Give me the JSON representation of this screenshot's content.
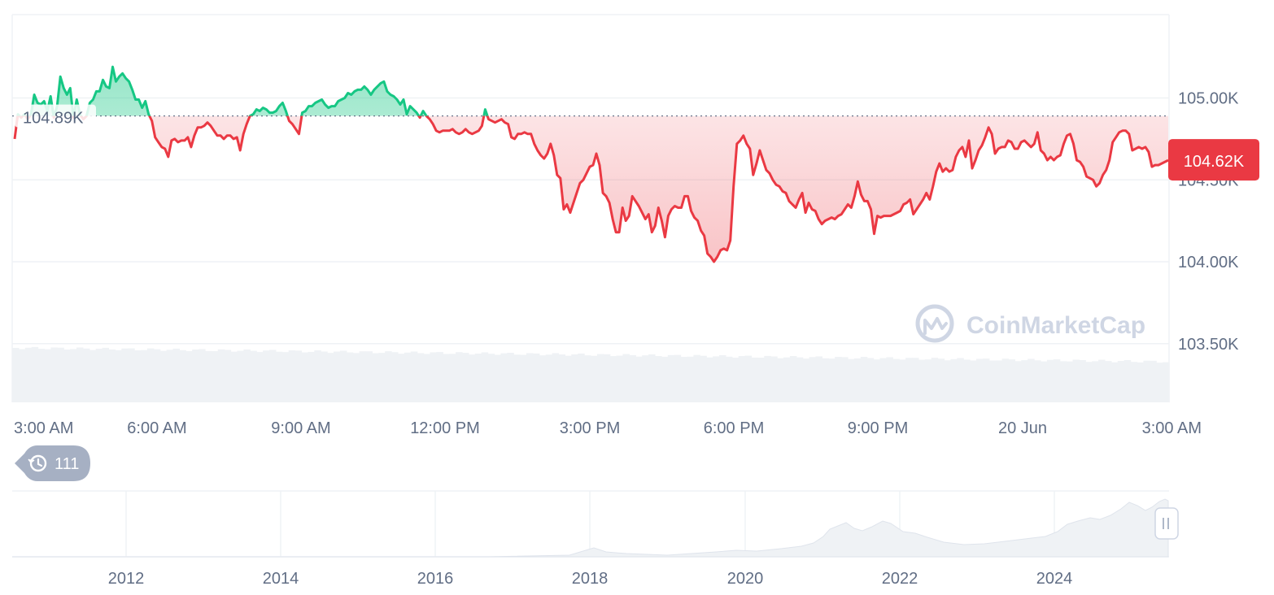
{
  "chart_data": [
    {
      "type": "line",
      "title": "",
      "xlabel": "",
      "ylabel": "",
      "x_ticks": [
        "3:00 AM",
        "6:00 AM",
        "9:00 AM",
        "12:00 PM",
        "3:00 PM",
        "6:00 PM",
        "9:00 PM",
        "20 Jun",
        "3:00 AM"
      ],
      "y_ticks": [
        "105.00K",
        "104.50K",
        "104.00K",
        "103.50K"
      ],
      "y_tick_values": [
        105000,
        104500,
        104000,
        103500
      ],
      "ylim": [
        103500,
        105500
      ],
      "grid": true,
      "reference_value": 104890,
      "reference_label": "104.89K",
      "current_value": 104620,
      "current_label": "104.62K",
      "color_above": "#16c784",
      "color_below": "#ea3943",
      "volume_color": "#eff2f5",
      "watermark": "CoinMarketCap",
      "series": [
        {
          "values": [
            104750,
            104900,
            104880,
            104900,
            104870,
            104900,
            105020,
            104970,
            104960,
            104980,
            104920,
            105010,
            104880,
            104950,
            105130,
            105060,
            105020,
            105060,
            104880,
            104990,
            104900,
            104870,
            104890,
            104970,
            104990,
            105040,
            105040,
            105110,
            105070,
            105060,
            105190,
            105100,
            105130,
            105150,
            105120,
            105100,
            105050,
            104990,
            104990,
            104940,
            104980,
            104900,
            104860,
            104760,
            104730,
            104700,
            104690,
            104640,
            104740,
            104750,
            104730,
            104740,
            104740,
            104760,
            104700,
            104770,
            104820,
            104820,
            104830,
            104850,
            104830,
            104800,
            104770,
            104770,
            104750,
            104770,
            104770,
            104750,
            104760,
            104680,
            104780,
            104840,
            104890,
            104900,
            104930,
            104920,
            104940,
            104930,
            104910,
            104910,
            104920,
            104950,
            104970,
            104920,
            104860,
            104840,
            104810,
            104780,
            104910,
            104920,
            104950,
            104950,
            104970,
            104980,
            104990,
            104960,
            104940,
            104950,
            104950,
            104980,
            104990,
            105000,
            105030,
            105020,
            105040,
            105050,
            105050,
            105070,
            105050,
            105020,
            105050,
            105070,
            105090,
            105100,
            105040,
            105020,
            105010,
            104990,
            104960,
            104990,
            104900,
            104950,
            104930,
            104910,
            104880,
            104920,
            104890,
            104870,
            104840,
            104800,
            104790,
            104800,
            104800,
            104800,
            104810,
            104790,
            104780,
            104790,
            104810,
            104790,
            104780,
            104790,
            104800,
            104830,
            104930,
            104870,
            104860,
            104850,
            104860,
            104870,
            104850,
            104840,
            104760,
            104750,
            104780,
            104780,
            104790,
            104780,
            104780,
            104720,
            104680,
            104650,
            104630,
            104660,
            104720,
            104650,
            104530,
            104510,
            104320,
            104350,
            104300,
            104360,
            104420,
            104480,
            104500,
            104540,
            104580,
            104590,
            104660,
            104590,
            104420,
            104400,
            104360,
            104260,
            104180,
            104180,
            104330,
            104250,
            104280,
            104400,
            104370,
            104340,
            104300,
            104260,
            104290,
            104180,
            104220,
            104330,
            104250,
            104150,
            104280,
            104320,
            104340,
            104330,
            104330,
            104400,
            104400,
            104310,
            104270,
            104250,
            104190,
            104160,
            104050,
            104030,
            104000,
            104030,
            104070,
            104080,
            104070,
            104130,
            104460,
            104720,
            104740,
            104770,
            104720,
            104690,
            104530,
            104600,
            104680,
            104620,
            104560,
            104540,
            104500,
            104470,
            104460,
            104430,
            104420,
            104370,
            104350,
            104330,
            104380,
            104420,
            104300,
            104360,
            104320,
            104310,
            104260,
            104230,
            104250,
            104260,
            104270,
            104260,
            104280,
            104290,
            104320,
            104350,
            104330,
            104400,
            104490,
            104410,
            104370,
            104370,
            104320,
            104170,
            104280,
            104270,
            104280,
            104280,
            104280,
            104290,
            104300,
            104310,
            104350,
            104360,
            104380,
            104290,
            104320,
            104350,
            104380,
            104420,
            104380,
            104460,
            104550,
            104600,
            104550,
            104570,
            104550,
            104560,
            104640,
            104680,
            104700,
            104640,
            104740,
            104570,
            104620,
            104680,
            104710,
            104760,
            104820,
            104780,
            104660,
            104690,
            104700,
            104700,
            104740,
            104730,
            104690,
            104690,
            104730,
            104740,
            104720,
            104700,
            104720,
            104790,
            104680,
            104660,
            104620,
            104640,
            104620,
            104640,
            104650,
            104720,
            104770,
            104780,
            104720,
            104620,
            104610,
            104580,
            104520,
            104510,
            104500,
            104460,
            104480,
            104530,
            104560,
            104620,
            104730,
            104760,
            104790,
            104800,
            104800,
            104780,
            104680,
            104690,
            104700,
            104690,
            104700,
            104670,
            104580,
            104590,
            104590,
            104600,
            104610,
            104620
          ]
        }
      ]
    },
    {
      "type": "area",
      "title": "",
      "x_ticks": [
        "2012",
        "2014",
        "2016",
        "2018",
        "2020",
        "2022",
        "2024"
      ]
    }
  ],
  "history_badge": {
    "count": "111"
  }
}
